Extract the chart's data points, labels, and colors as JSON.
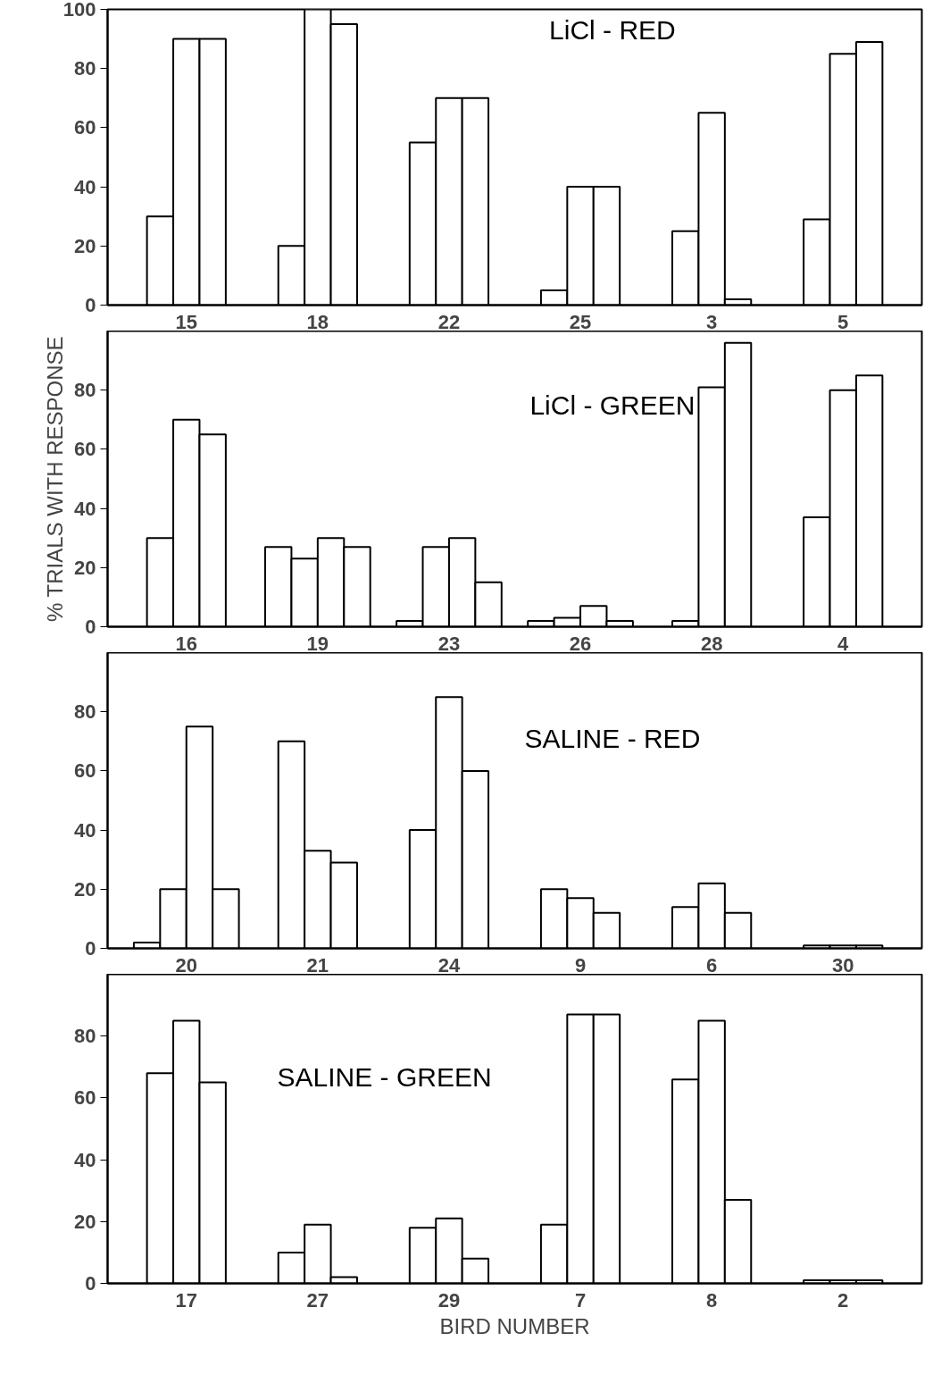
{
  "chart_data": [
    {
      "type": "bar",
      "title": "LiCl - RED",
      "categories": [
        "15",
        "18",
        "22",
        "25",
        "3",
        "5"
      ],
      "ylim": [
        0,
        100
      ],
      "yticks": [
        0,
        20,
        40,
        60,
        80,
        100
      ],
      "grid": false,
      "series": [
        {
          "color": "#ffffff",
          "values": [
            30,
            20,
            55,
            5,
            25,
            29
          ]
        },
        {
          "color": "#ffffff",
          "values": [
            90,
            100,
            70,
            40,
            65,
            85
          ]
        },
        {
          "color": "#ffffff",
          "values": [
            90,
            95,
            70,
            40,
            2,
            89
          ]
        }
      ]
    },
    {
      "type": "bar",
      "title": "LiCl - GREEN",
      "ylabel": "% TRIALS WITH RESPONSE",
      "categories": [
        "16",
        "19",
        "23",
        "26",
        "28",
        "4"
      ],
      "ylim": [
        0,
        100
      ],
      "yticks": [
        0,
        20,
        40,
        60,
        80
      ],
      "grid": false,
      "series": [
        {
          "color": "#ffffff",
          "values": [
            30,
            27,
            2,
            2,
            2,
            37
          ]
        },
        {
          "color": "#ffffff",
          "values": [
            70,
            23,
            27,
            3,
            81,
            80
          ]
        },
        {
          "color": "#ffffff",
          "values": [
            65,
            30,
            30,
            7,
            96,
            85
          ]
        },
        {
          "color": "#ffffff",
          "values": [
            null,
            27,
            15,
            2,
            null,
            null
          ]
        }
      ]
    },
    {
      "type": "bar",
      "title": "SALINE - RED",
      "categories": [
        "20",
        "21",
        "24",
        "9",
        "6",
        "30"
      ],
      "ylim": [
        0,
        100
      ],
      "yticks": [
        0,
        20,
        40,
        60,
        80
      ],
      "grid": false,
      "series": [
        {
          "color": "#ffffff",
          "values": [
            2,
            70,
            40,
            20,
            14,
            1
          ]
        },
        {
          "color": "#ffffff",
          "values": [
            20,
            33,
            85,
            17,
            22,
            1
          ]
        },
        {
          "color": "#ffffff",
          "values": [
            75,
            29,
            60,
            12,
            12,
            1
          ]
        },
        {
          "color": "#ffffff",
          "values": [
            20,
            null,
            null,
            null,
            null,
            null
          ]
        }
      ]
    },
    {
      "type": "bar",
      "title": "SALINE - GREEN",
      "xlabel": "BIRD NUMBER",
      "categories": [
        "17",
        "27",
        "29",
        "7",
        "8",
        "2"
      ],
      "ylim": [
        0,
        100
      ],
      "yticks": [
        0,
        20,
        40,
        60,
        80
      ],
      "grid": false,
      "series": [
        {
          "color": "#ffffff",
          "values": [
            68,
            10,
            18,
            19,
            66,
            1
          ]
        },
        {
          "color": "#ffffff",
          "values": [
            85,
            19,
            21,
            87,
            85,
            1
          ]
        },
        {
          "color": "#ffffff",
          "values": [
            65,
            2,
            8,
            87,
            27,
            1
          ]
        }
      ]
    }
  ]
}
